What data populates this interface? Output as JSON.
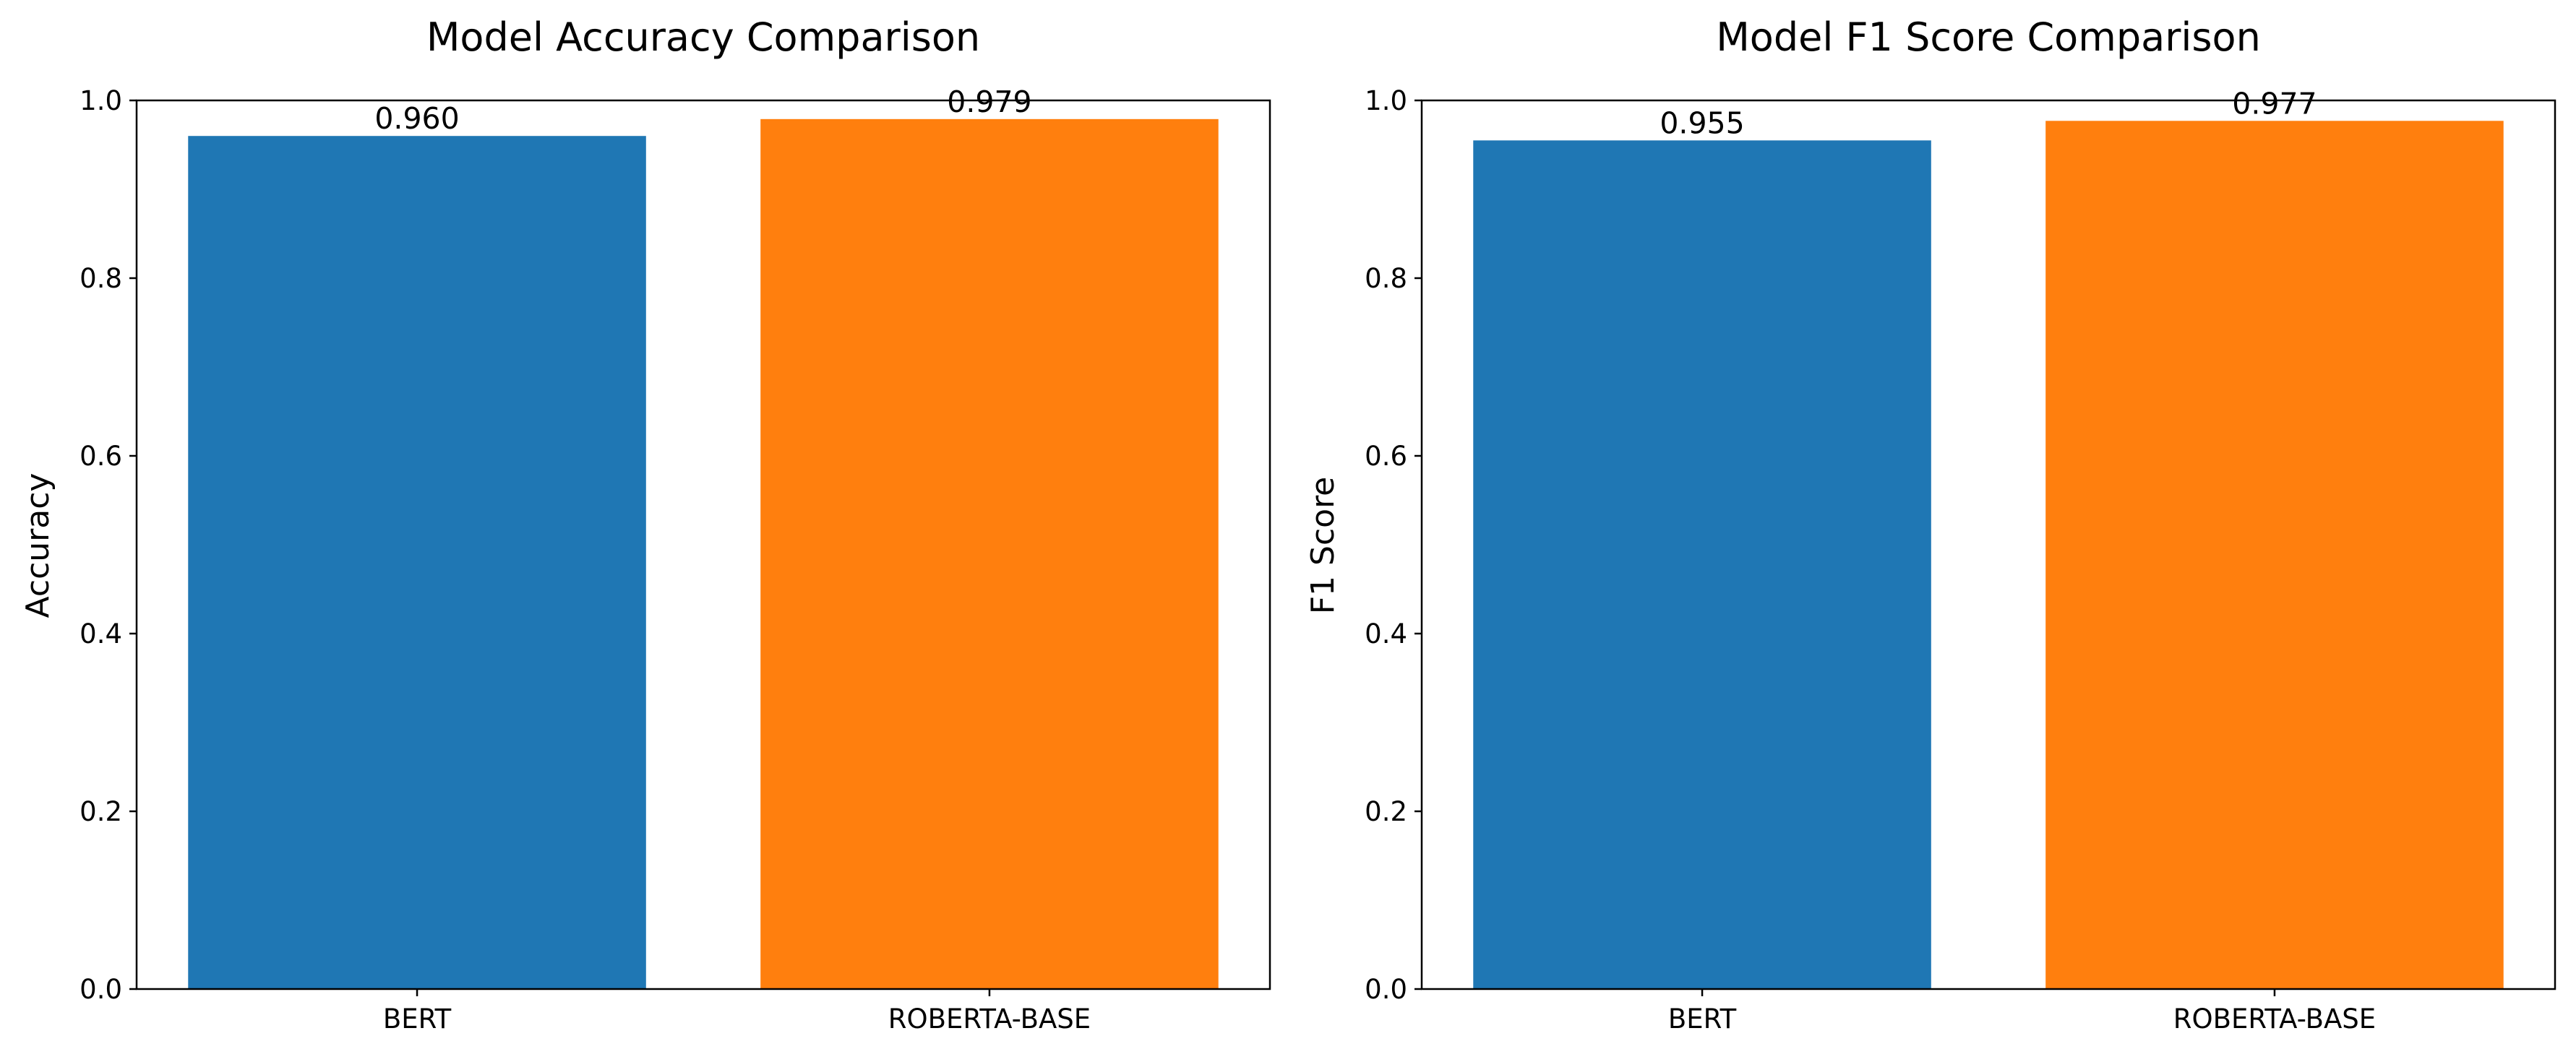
{
  "chart_data": [
    {
      "type": "bar",
      "title": "Model Accuracy Comparison",
      "xlabel": "",
      "ylabel": "Accuracy",
      "categories": [
        "BERT",
        "ROBERTA-BASE"
      ],
      "values": [
        0.96,
        0.979
      ],
      "value_labels": [
        "0.960",
        "0.979"
      ],
      "colors": [
        "#1f77b4",
        "#ff7f0e"
      ],
      "ylim": [
        0,
        1.0
      ],
      "yticks": [
        0.0,
        0.2,
        0.4,
        0.6,
        0.8,
        1.0
      ],
      "ytick_labels": [
        "0.0",
        "0.2",
        "0.4",
        "0.6",
        "0.8",
        "1.0"
      ],
      "grid": false
    },
    {
      "type": "bar",
      "title": "Model F1 Score Comparison",
      "xlabel": "",
      "ylabel": "F1 Score",
      "categories": [
        "BERT",
        "ROBERTA-BASE"
      ],
      "values": [
        0.955,
        0.977
      ],
      "value_labels": [
        "0.955",
        "0.977"
      ],
      "colors": [
        "#1f77b4",
        "#ff7f0e"
      ],
      "ylim": [
        0,
        1.0
      ],
      "yticks": [
        0.0,
        0.2,
        0.4,
        0.6,
        0.8,
        1.0
      ],
      "ytick_labels": [
        "0.0",
        "0.2",
        "0.4",
        "0.6",
        "0.8",
        "1.0"
      ],
      "grid": false
    }
  ]
}
